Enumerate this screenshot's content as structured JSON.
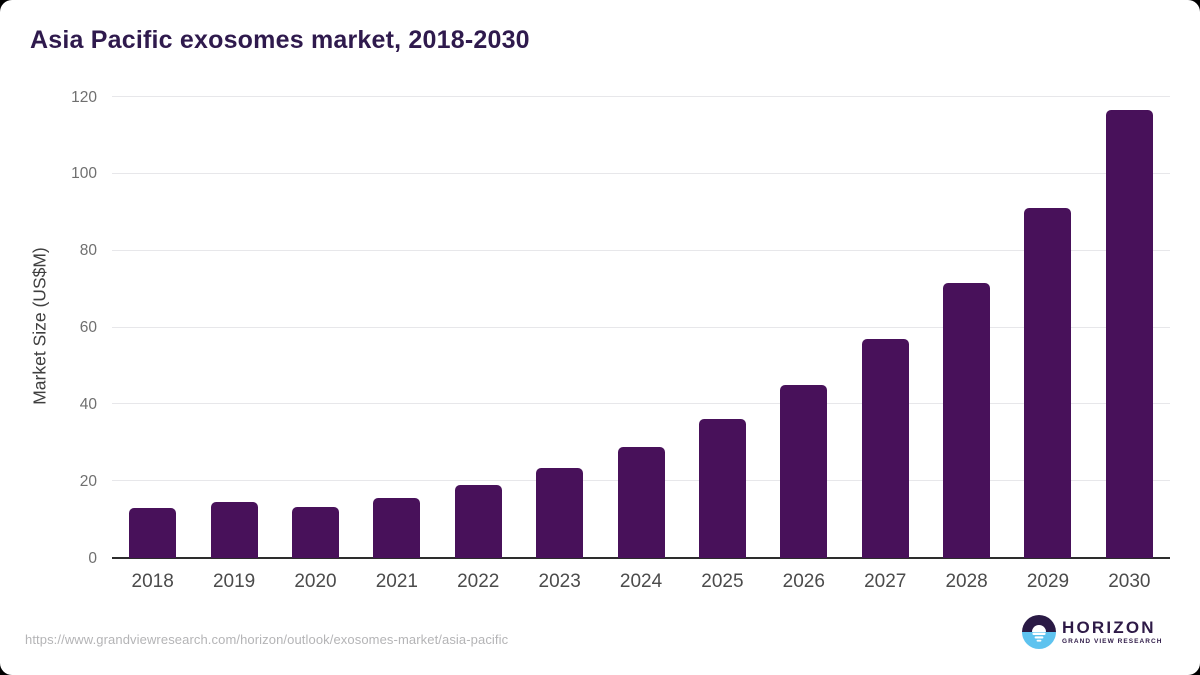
{
  "chart_data": {
    "type": "bar",
    "title": "Asia Pacific exosomes market, 2018-2030",
    "xlabel": "",
    "ylabel": "Market Size (US$M)",
    "categories": [
      "2018",
      "2019",
      "2020",
      "2021",
      "2022",
      "2023",
      "2024",
      "2025",
      "2026",
      "2027",
      "2028",
      "2029",
      "2030"
    ],
    "values": [
      13.0,
      14.6,
      13.3,
      15.7,
      19.0,
      23.4,
      28.9,
      36.1,
      45.1,
      56.9,
      71.5,
      91.2,
      116.5
    ],
    "ylim": [
      0,
      120
    ],
    "yticks": [
      0,
      20,
      40,
      60,
      80,
      100,
      120
    ],
    "grid": "horizontal-light",
    "legend": "none",
    "bar_color": "#48115a",
    "title_color": "#2f1a4d",
    "gridline_color": "#e7e7ea",
    "axis_line_color": "#2d2d2d",
    "y_tick_color": "#6f6f6f",
    "x_tick_color": "#4b4b4b"
  },
  "footer": {
    "source_url": "https://www.grandviewresearch.com/horizon/outlook/exosomes-market/asia-pacific",
    "logo": {
      "wordmark": "HORIZON",
      "subtitle": "GRAND VIEW RESEARCH",
      "icon": "horizon-sunset-icon",
      "dark_color": "#2a1a45",
      "blue_color": "#5ec3ef"
    }
  }
}
